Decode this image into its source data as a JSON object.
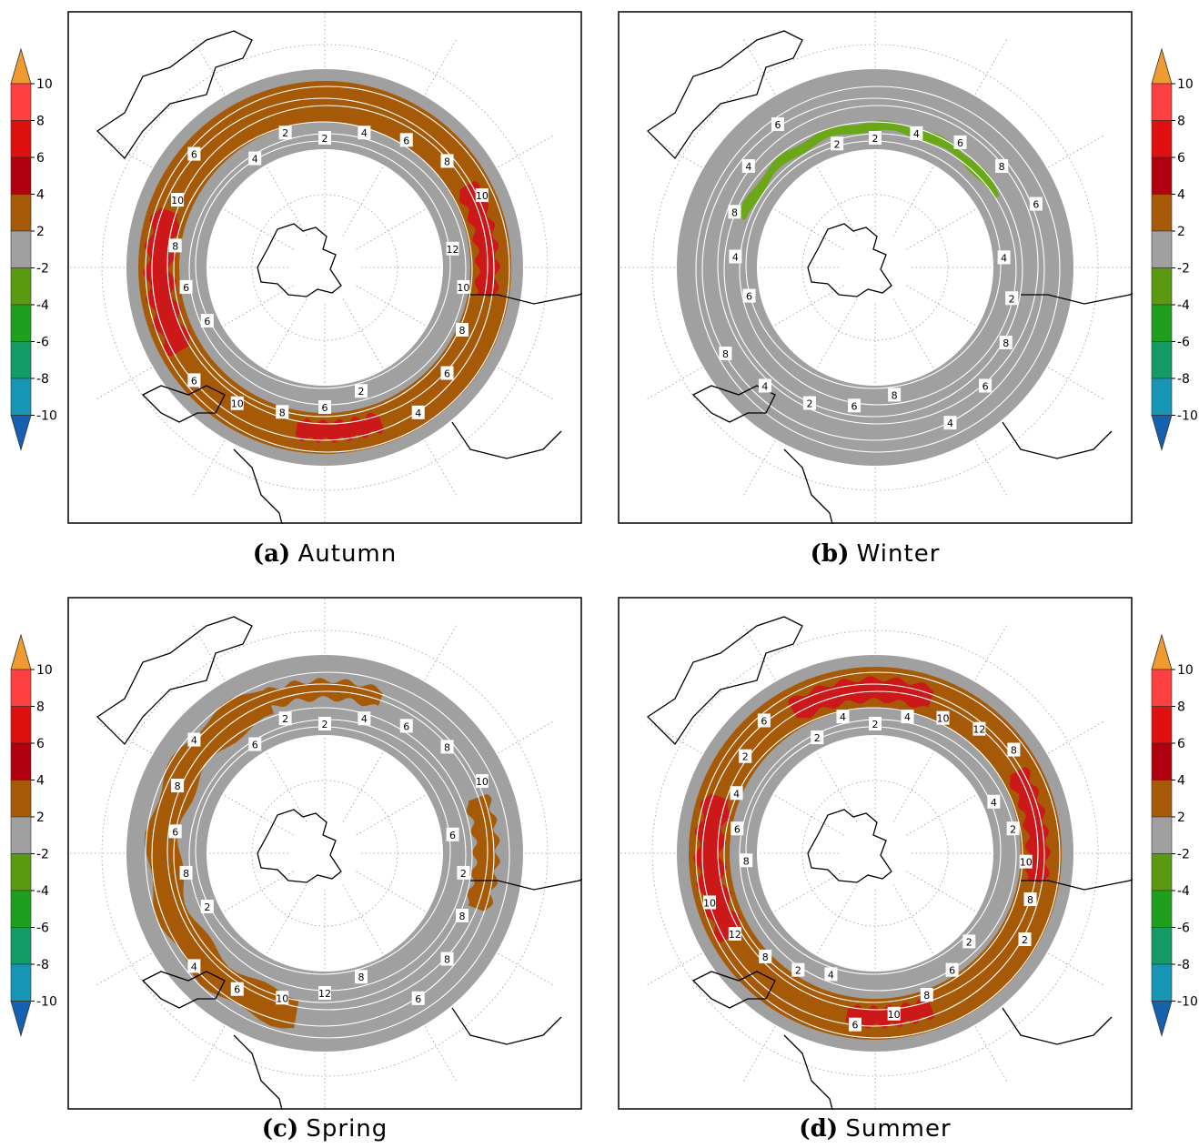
{
  "colorbar": {
    "levels": [
      {
        "label": "10",
        "color": "#f09a32"
      },
      {
        "label": "8",
        "color": "#ff4040"
      },
      {
        "label": "6",
        "color": "#e01010"
      },
      {
        "label": "4",
        "color": "#b00010"
      },
      {
        "label": "2",
        "color": "#a65a08"
      },
      {
        "label": "-2",
        "color": "#a0a0a0"
      },
      {
        "label": "-4",
        "color": "#5a9a10"
      },
      {
        "label": "-6",
        "color": "#1ea01e"
      },
      {
        "label": "-8",
        "color": "#149a64"
      },
      {
        "label": "-10",
        "color": "#1696b4"
      },
      {
        "label": "",
        "color": "#1660b0"
      }
    ],
    "colors": {
      "top_arrow": "#f09a32",
      "c10": "#ff4040",
      "c8": "#e01010",
      "c6": "#b00010",
      "c4": "#a65a08",
      "c2": "#a0a0a0",
      "cm2": "#5a9a10",
      "cm4": "#1ea01e",
      "cm6": "#149a64",
      "cm8": "#1696b4",
      "bottom_arrow": "#1660b0"
    },
    "tick_labels": [
      "10",
      "8",
      "6",
      "4",
      "2",
      "-2",
      "-4",
      "-6",
      "-8",
      "-10"
    ]
  },
  "panels": [
    {
      "id": "autumn",
      "letter": "(a)",
      "name": "Autumn",
      "fill_color": "#a65a08",
      "hot_color": "#cc1818",
      "contour_labels": [
        "2",
        "4",
        "6",
        "8",
        "10",
        "12",
        "10",
        "8",
        "6",
        "4",
        "2",
        "6",
        "8",
        "10",
        "6",
        "6",
        "6",
        "8",
        "10",
        "6",
        "4",
        "2"
      ]
    },
    {
      "id": "winter",
      "letter": "(b)",
      "name": "Winter",
      "fill_color": "#a0a0a0",
      "hot_color": "#6aa818",
      "contour_labels": [
        "2",
        "4",
        "6",
        "8",
        "6",
        "4",
        "2",
        "8",
        "6",
        "4",
        "8",
        "6",
        "2",
        "4",
        "8",
        "6",
        "4",
        "8",
        "4",
        "6",
        "2"
      ]
    },
    {
      "id": "spring",
      "letter": "(c)",
      "name": "Spring",
      "fill_color": "#a65a08",
      "hot_color": "#cc1818",
      "contour_labels": [
        "2",
        "4",
        "6",
        "8",
        "10",
        "6",
        "2",
        "8",
        "8",
        "6",
        "8",
        "12",
        "10",
        "6",
        "4",
        "2",
        "8",
        "6",
        "8",
        "4",
        "6",
        "2"
      ]
    },
    {
      "id": "summer",
      "letter": "(d)",
      "name": "Summer",
      "fill_color": "#a65a08",
      "hot_color": "#cc1818",
      "contour_labels": [
        "2",
        "4",
        "10",
        "12",
        "8",
        "4",
        "2",
        "10",
        "8",
        "2",
        "2",
        "6",
        "8",
        "10",
        "6",
        "4",
        "2",
        "8",
        "12",
        "10",
        "8",
        "6",
        "4",
        "2",
        "6",
        "2",
        "4"
      ]
    }
  ]
}
